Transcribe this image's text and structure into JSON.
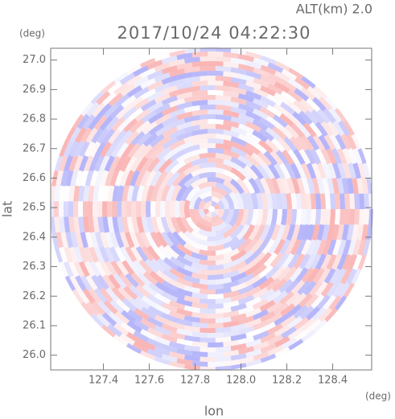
{
  "chart_data": {
    "type": "radar_scan",
    "title": "2017/10/24 04:22:30",
    "altitude_label": "ALT(km) 2.0",
    "x_label": "lon",
    "y_label": "lat",
    "x_unit": "(deg)",
    "y_unit": "(deg)",
    "xlim": [
      127.17,
      128.57
    ],
    "ylim": [
      25.95,
      27.04
    ],
    "xticks": [
      127.4,
      127.6,
      127.8,
      {
        "value": 128,
        "label": "128.0"
      },
      128.2,
      128.4
    ],
    "yticks": [
      {
        "value": 26,
        "label": "26.0"
      },
      26.1,
      26.2,
      26.3,
      26.4,
      26.5,
      26.6,
      26.7,
      26.8,
      26.9,
      {
        "value": 27,
        "label": "27.0"
      }
    ]
  }
}
